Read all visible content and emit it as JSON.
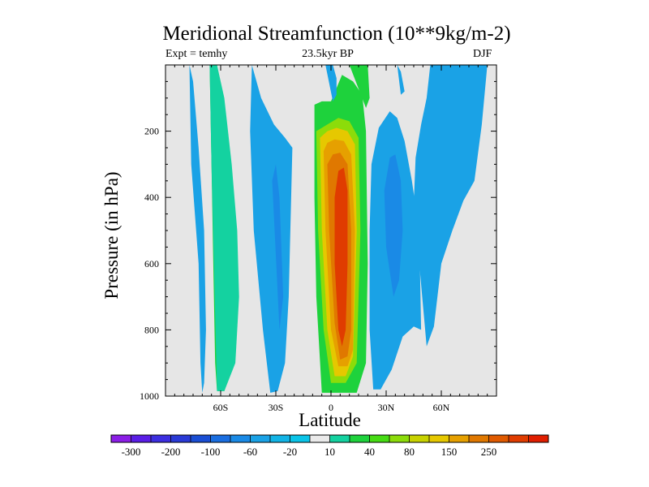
{
  "chart_data": {
    "type": "contour",
    "title": "Meridional Streamfunction (10**9kg/m-2)",
    "subtitle_left": "Expt = temhy",
    "subtitle_center": "23.5kyr BP",
    "subtitle_right": "DJF",
    "xlabel": "Latitude",
    "ylabel": "Pressure (in hPa)",
    "xlim": [
      -90,
      90
    ],
    "ylim": [
      1000,
      0
    ],
    "x_ticks": [
      {
        "value": -60,
        "label": "60S"
      },
      {
        "value": -30,
        "label": "30S"
      },
      {
        "value": 0,
        "label": "0"
      },
      {
        "value": 30,
        "label": "30N"
      },
      {
        "value": 60,
        "label": "60N"
      }
    ],
    "y_ticks": [
      {
        "value": 200,
        "label": "200"
      },
      {
        "value": 400,
        "label": "400"
      },
      {
        "value": 600,
        "label": "600"
      },
      {
        "value": 800,
        "label": "800"
      },
      {
        "value": 1000,
        "label": "1000"
      }
    ],
    "background_color": "#e6e6e6",
    "colorbar": {
      "colors": [
        "#8b1ee6",
        "#5a1ee6",
        "#3c2ee0",
        "#2a3ad6",
        "#1a4ed4",
        "#1a6ee0",
        "#1a8ae6",
        "#1aa2e6",
        "#12b4e6",
        "#0ac4e8",
        "#eaeaea",
        "#14d2a0",
        "#1ed23c",
        "#46dc14",
        "#8cdc0a",
        "#c8d200",
        "#e6c800",
        "#e6a000",
        "#e07800",
        "#e05a00",
        "#e03c00",
        "#e01e00"
      ],
      "labels": [
        {
          "label": "-300",
          "index": 1
        },
        {
          "label": "-200",
          "index": 3
        },
        {
          "label": "-100",
          "index": 5
        },
        {
          "label": "-60",
          "index": 7
        },
        {
          "label": "-20",
          "index": 9
        },
        {
          "label": "10",
          "index": 11
        },
        {
          "label": "40",
          "index": 13
        },
        {
          "label": "80",
          "index": 15
        },
        {
          "label": "150",
          "index": 17
        },
        {
          "label": "250",
          "index": 19
        }
      ]
    },
    "regions": [
      {
        "name": "cell-sh-polar-negative",
        "color": "#1aa2e6",
        "level": -20,
        "x": [
          -77,
          -76,
          -72,
          -71,
          -70,
          -69,
          -68,
          -69,
          -72,
          -75,
          -77
        ],
        "y": [
          0,
          300,
          600,
          900,
          990,
          960,
          800,
          500,
          250,
          50,
          0
        ]
      },
      {
        "name": "cell-sh-positive",
        "color": "#1ed23c",
        "level": 40,
        "x": [
          -66,
          -65,
          -64,
          -63,
          -62,
          -58,
          -53,
          -52,
          -53,
          -56,
          -59,
          -62,
          -66
        ],
        "y": [
          0,
          300,
          600,
          900,
          985,
          985,
          900,
          700,
          500,
          300,
          100,
          0,
          0
        ]
      },
      {
        "name": "cell-sh-positive-edge",
        "color": "#14d2a0",
        "level": 10,
        "x": [
          -66,
          -65,
          -62,
          -58,
          -52,
          -50,
          -51,
          -54,
          -58,
          -62,
          -66
        ],
        "y": [
          0,
          300,
          985,
          985,
          900,
          700,
          500,
          300,
          100,
          0,
          0
        ]
      },
      {
        "name": "cell-ferrel-negative",
        "color": "#1aa2e6",
        "level": -20,
        "x": [
          -43,
          -44,
          -42,
          -37,
          -33,
          -29,
          -25,
          -23,
          -21,
          -25,
          -31,
          -38,
          -43
        ],
        "y": [
          0,
          200,
          500,
          800,
          990,
          985,
          900,
          700,
          250,
          220,
          180,
          100,
          0
        ]
      },
      {
        "name": "cell-ferrel-negative-strong",
        "color": "#1a8ae6",
        "level": -60,
        "x": [
          -32,
          -30,
          -28,
          -26,
          -28,
          -32
        ],
        "y": [
          350,
          300,
          400,
          700,
          800,
          350
        ]
      },
      {
        "name": "cell-hadley-10",
        "color": "#1ed23c",
        "level": 40,
        "x": [
          -9,
          -9,
          -8,
          -5,
          5,
          14,
          19,
          20,
          19,
          17,
          12,
          6,
          0,
          -5,
          -9
        ],
        "y": [
          120,
          400,
          700,
          990,
          990,
          990,
          900,
          600,
          200,
          90,
          50,
          30,
          110,
          110,
          120
        ]
      },
      {
        "name": "cell-hadley-80",
        "color": "#8cdc0a",
        "level": 80,
        "x": [
          -8,
          -7,
          -4,
          0,
          8,
          14,
          16,
          15,
          10,
          4,
          -2,
          -8
        ],
        "y": [
          200,
          500,
          800,
          960,
          960,
          900,
          500,
          220,
          170,
          160,
          180,
          200
        ]
      },
      {
        "name": "cell-hadley-150",
        "color": "#e6c800",
        "level": 150,
        "x": [
          -6,
          -5,
          -2,
          2,
          8,
          12,
          14,
          13,
          9,
          3,
          -2,
          -6
        ],
        "y": [
          220,
          500,
          800,
          940,
          940,
          880,
          500,
          240,
          200,
          190,
          200,
          220
        ]
      },
      {
        "name": "cell-hadley-200",
        "color": "#e6a000",
        "level": 200,
        "x": [
          -4,
          -3,
          0,
          4,
          9,
          12,
          13,
          11,
          7,
          2,
          -2,
          -4
        ],
        "y": [
          260,
          500,
          800,
          910,
          910,
          860,
          500,
          270,
          230,
          225,
          235,
          260
        ]
      },
      {
        "name": "cell-hadley-250",
        "color": "#e07800",
        "level": 250,
        "x": [
          -2,
          -1,
          2,
          5,
          9,
          11,
          11,
          9,
          5,
          1,
          -2
        ],
        "y": [
          300,
          500,
          780,
          890,
          880,
          800,
          500,
          300,
          265,
          270,
          300
        ]
      },
      {
        "name": "cell-hadley-core",
        "color": "#e03c00",
        "level": 300,
        "x": [
          2,
          2,
          4,
          6,
          8,
          9,
          9,
          7,
          4,
          2
        ],
        "y": [
          400,
          600,
          800,
          850,
          800,
          600,
          380,
          310,
          320,
          400
        ]
      },
      {
        "name": "cell-nh-ferrel-negative",
        "color": "#1aa2e6",
        "level": -20,
        "x": [
          22,
          21,
          21,
          23,
          27,
          33,
          39,
          45,
          49,
          48,
          44,
          40,
          36,
          32,
          26,
          22
        ],
        "y": [
          300,
          500,
          800,
          980,
          980,
          920,
          820,
          790,
          800,
          500,
          350,
          230,
          160,
          140,
          190,
          300
        ]
      },
      {
        "name": "cell-nh-ferrel-negative-strong",
        "color": "#1a8ae6",
        "level": -60,
        "x": [
          29,
          30,
          34,
          37,
          39,
          38,
          35,
          32,
          29
        ],
        "y": [
          380,
          550,
          700,
          650,
          500,
          350,
          270,
          280,
          380
        ]
      },
      {
        "name": "cell-nh-polar-negative",
        "color": "#1aa2e6",
        "level": -20,
        "x": [
          54,
          52,
          49,
          46,
          45,
          48,
          52,
          56,
          60,
          66,
          72,
          78,
          82,
          85,
          78,
          70,
          64,
          58,
          54
        ],
        "y": [
          0,
          100,
          180,
          280,
          420,
          600,
          850,
          790,
          600,
          500,
          410,
          350,
          180,
          0,
          0,
          0,
          0,
          0,
          0
        ]
      },
      {
        "name": "cell-nh-upper-negative",
        "color": "#1aa2e6",
        "level": -20,
        "x": [
          36,
          38,
          40,
          38,
          36
        ],
        "y": [
          0,
          20,
          80,
          90,
          0
        ]
      },
      {
        "name": "cell-eq-upper-negative",
        "color": "#1aa2e6",
        "level": -20,
        "x": [
          -3,
          1,
          3,
          3,
          1,
          -3
        ],
        "y": [
          0,
          0,
          40,
          90,
          110,
          0
        ]
      },
      {
        "name": "cell-eq-upper-positive",
        "color": "#1ed23c",
        "level": 40,
        "x": [
          10,
          20,
          21,
          19,
          10
        ],
        "y": [
          0,
          0,
          100,
          130,
          0
        ]
      }
    ]
  }
}
